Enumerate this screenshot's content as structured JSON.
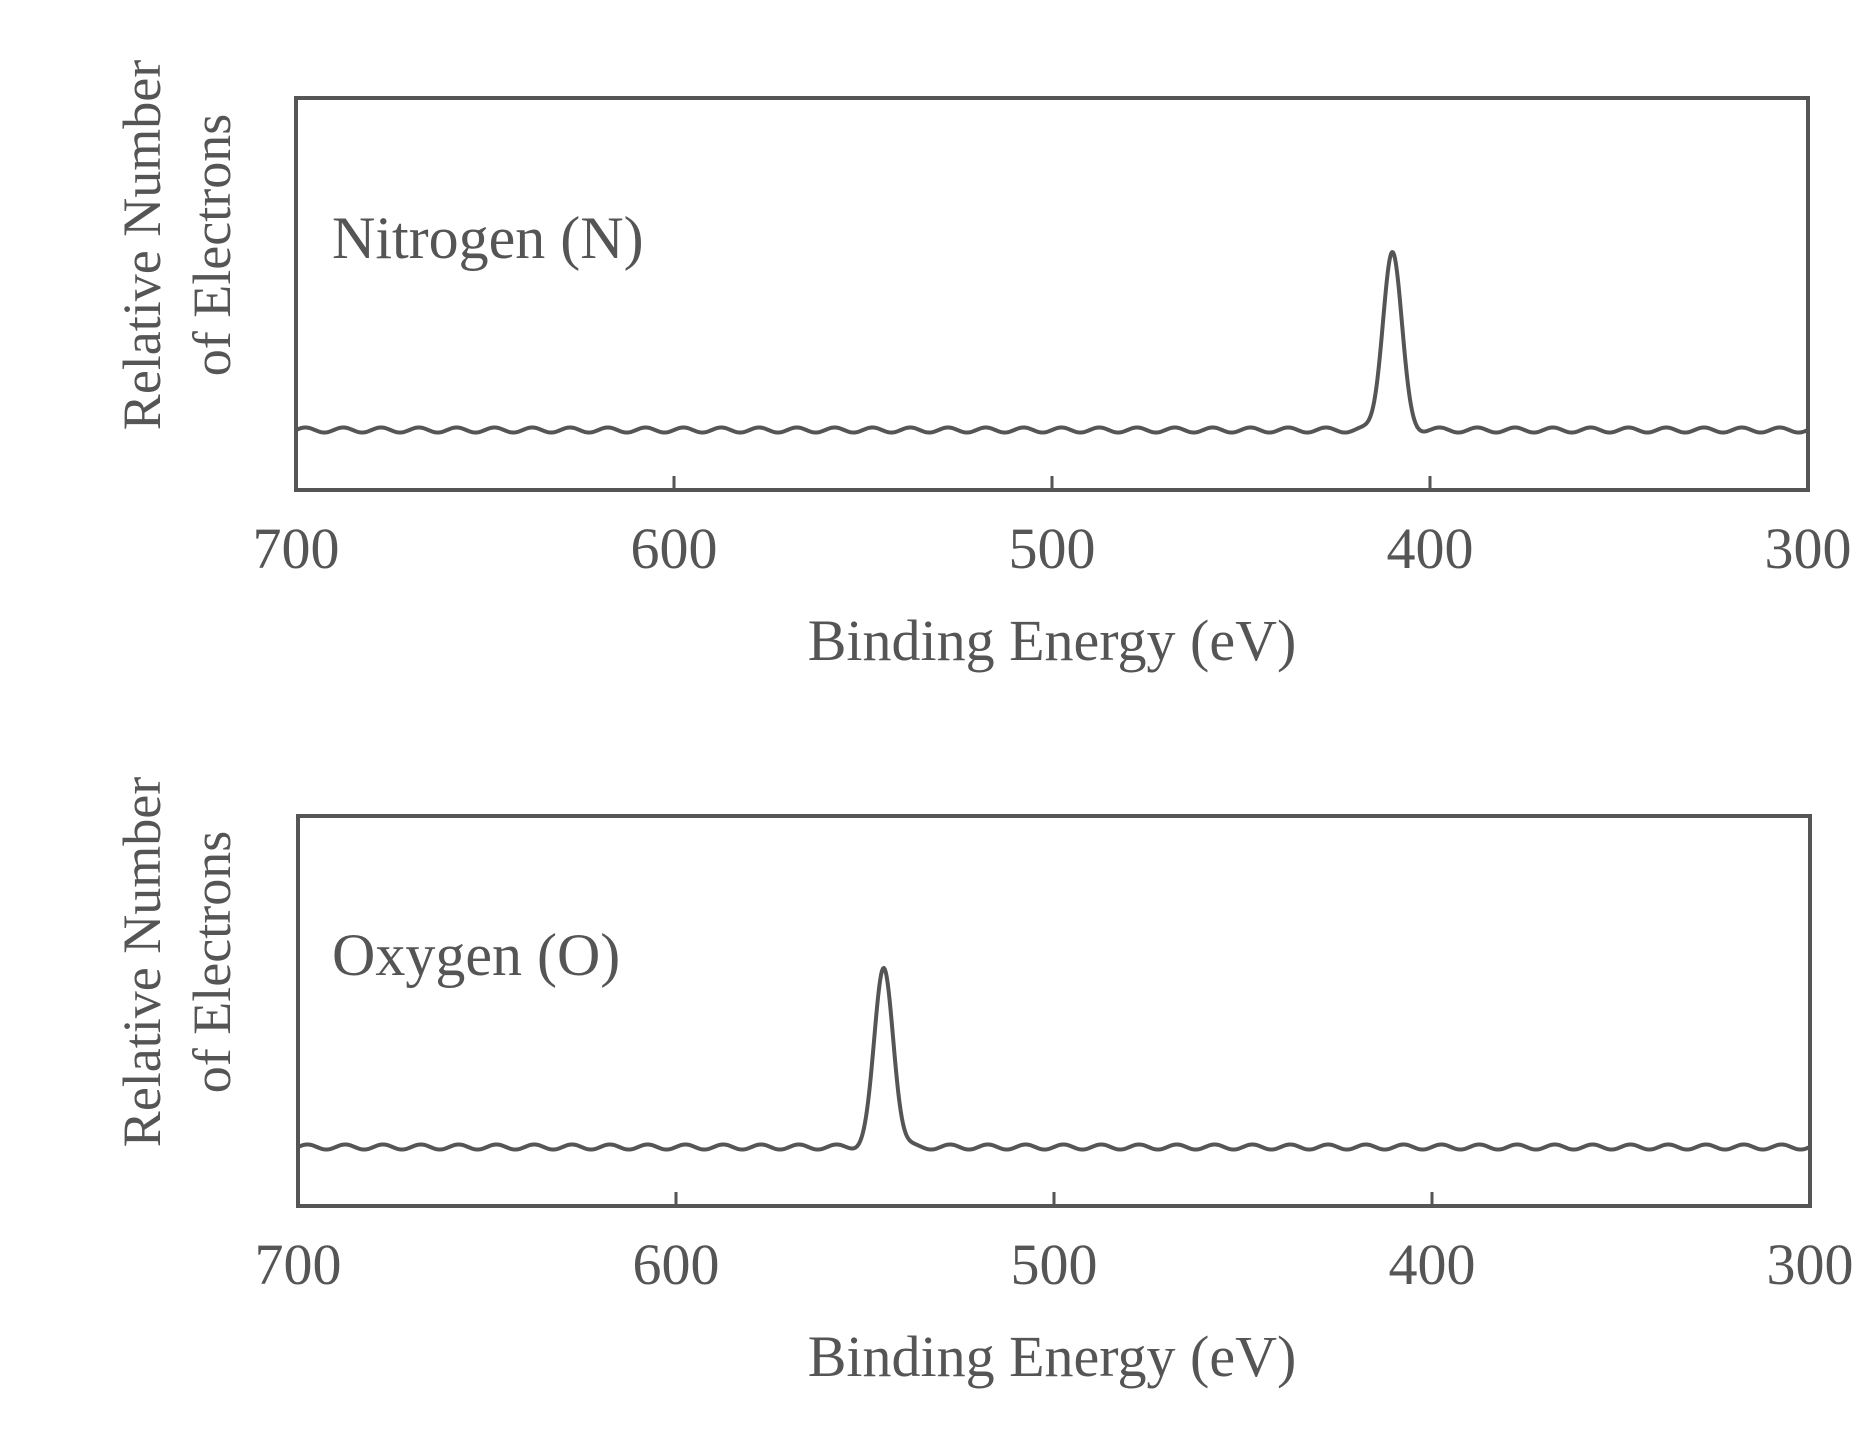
{
  "chart_data": [
    {
      "type": "line",
      "title": "Nitrogen (N)",
      "xlabel": "Binding Energy (eV)",
      "ylabel_line1": "Relative Number",
      "ylabel_line2": "of Electrons",
      "xlim": [
        700,
        300
      ],
      "x_reversed": true,
      "xticks": [
        700,
        600,
        500,
        400,
        300
      ],
      "xtick_labels": [
        "700",
        "600",
        "500",
        "400",
        "300"
      ],
      "grid": false,
      "series": [
        {
          "name": "Nitrogen (N)",
          "baseline": 0.15,
          "ripple_amplitude": 0.012,
          "peak_center": 410,
          "peak_height": 1.0,
          "peak_width": 2.5
        }
      ]
    },
    {
      "type": "line",
      "title": "Oxygen (O)",
      "xlabel": "Binding Energy (eV)",
      "ylabel_line1": "Relative Number",
      "ylabel_line2": "of Electrons",
      "xlim": [
        700,
        300
      ],
      "x_reversed": true,
      "xticks": [
        700,
        600,
        500,
        400,
        300
      ],
      "xtick_labels": [
        "700",
        "600",
        "500",
        "400",
        "300"
      ],
      "grid": false,
      "series": [
        {
          "name": "Oxygen (O)",
          "baseline": 0.15,
          "ripple_amplitude": 0.012,
          "peak_center": 545,
          "peak_height": 1.0,
          "peak_width": 2.5
        }
      ]
    }
  ]
}
